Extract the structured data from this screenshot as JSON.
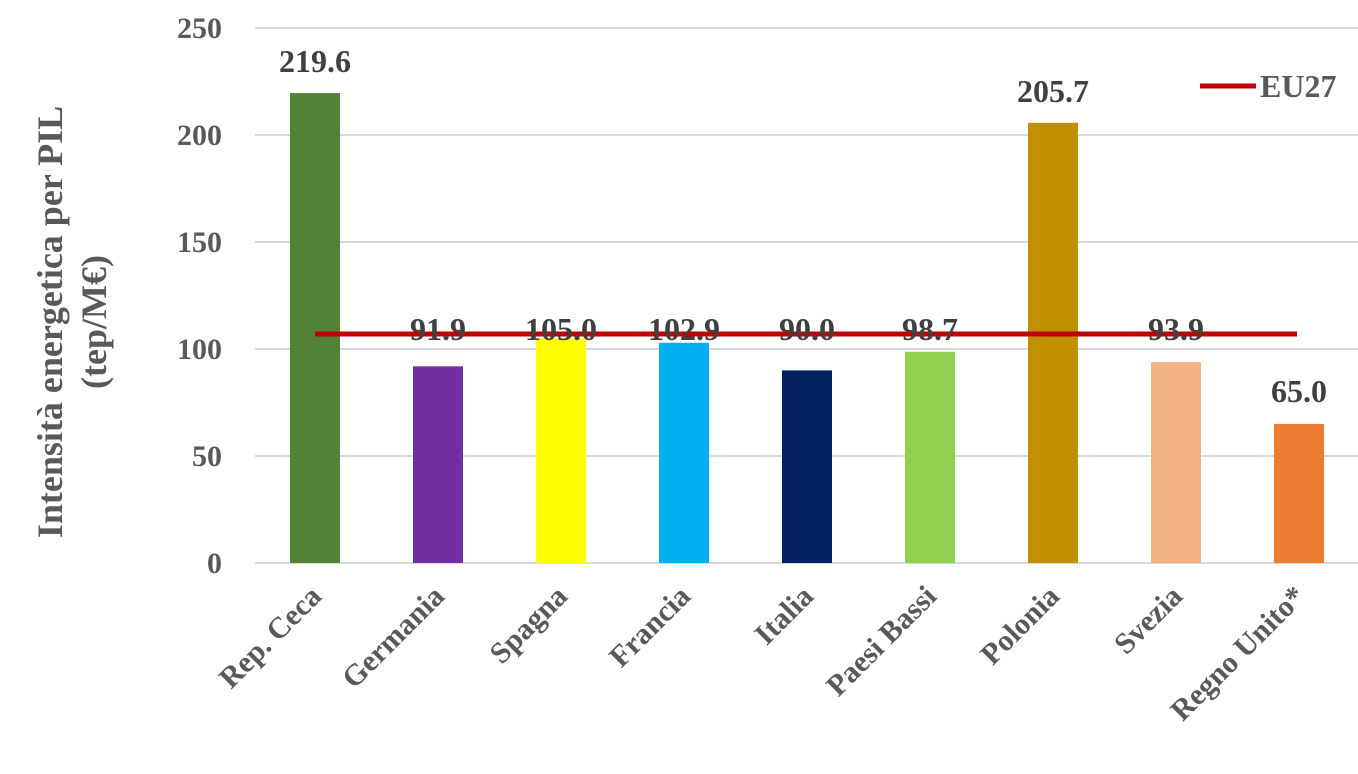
{
  "chart_data": {
    "type": "bar",
    "categories": [
      "Rep. Ceca",
      "Germania",
      "Spagna",
      "Francia",
      "Italia",
      "Paesi Bassi",
      "Polonia",
      "Svezia",
      "Regno Unito*"
    ],
    "values": [
      219.6,
      91.9,
      105.0,
      102.9,
      90.0,
      98.7,
      205.7,
      93.9,
      65.0
    ],
    "value_labels": [
      "219.6",
      "91.9",
      "105.0",
      "102.9",
      "90.0",
      "98.7",
      "205.7",
      "93.9",
      "65.0"
    ],
    "bar_colors": [
      "#538135",
      "#7030A0",
      "#FFFF00",
      "#00B0F0",
      "#002060",
      "#92D050",
      "#BF9000",
      "#F4B183",
      "#ED7D31"
    ],
    "ylabel_lines": [
      "Intensità energetica per PIL",
      "(tep/M€)"
    ],
    "xlabel": "",
    "ylim": [
      0,
      250
    ],
    "yticks": [
      0,
      50,
      100,
      150,
      200,
      250
    ],
    "grid": true,
    "reference_line": {
      "name": "EU27",
      "value": 107,
      "color": "#C00000"
    },
    "legend_position": "top-right"
  }
}
